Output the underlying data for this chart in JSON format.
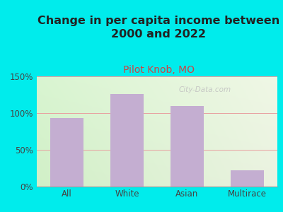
{
  "title": "Change in per capita income between\n2000 and 2022",
  "subtitle": "Pilot Knob, MO",
  "categories": [
    "All",
    "White",
    "Asian",
    "Multirace"
  ],
  "values": [
    93,
    126,
    110,
    22
  ],
  "bar_color": "#c4aed1",
  "title_fontsize": 11.5,
  "subtitle_fontsize": 10,
  "subtitle_color": "#cc4444",
  "title_color": "#222222",
  "background_outer": "#00ecec",
  "ylim": [
    0,
    150
  ],
  "yticks": [
    0,
    50,
    100,
    150
  ],
  "ytick_labels": [
    "0%",
    "50%",
    "100%",
    "150%"
  ],
  "grid_color": "#e8a0a0",
  "watermark": "City-Data.com",
  "tick_color": "#444444"
}
